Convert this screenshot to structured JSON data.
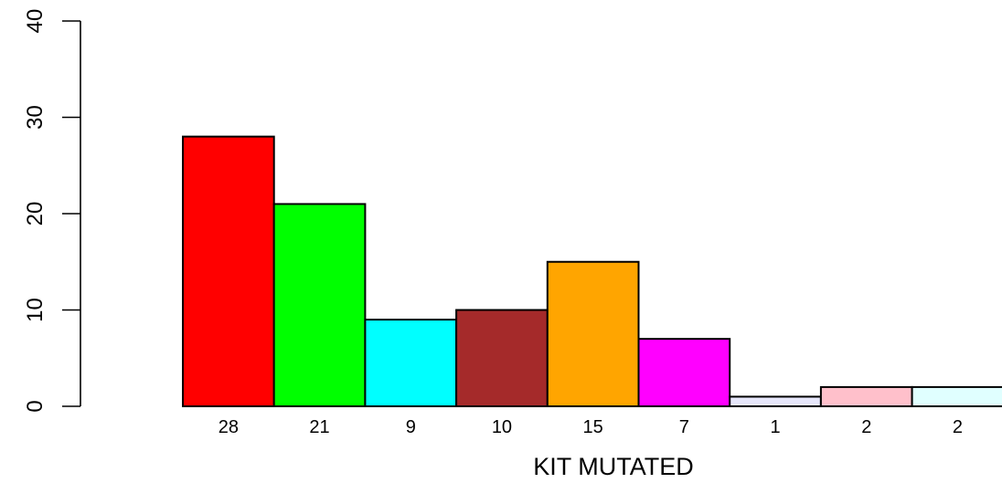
{
  "chart_data": {
    "type": "bar",
    "title": "",
    "xlabel": "KIT MUTATED",
    "ylabel": "",
    "ylim": [
      0,
      40
    ],
    "yticks": [
      0,
      10,
      20,
      30,
      40
    ],
    "grid": false,
    "categories": [
      "28",
      "21",
      "9",
      "10",
      "15",
      "7",
      "1",
      "2",
      "2"
    ],
    "values": [
      28,
      21,
      9,
      10,
      15,
      7,
      1,
      2,
      2
    ],
    "colors": [
      "#ff0000",
      "#00ff00",
      "#00ffff",
      "#a52a2a",
      "#ffa500",
      "#ff00ff",
      "#e6e6fa",
      "#ffc0cb",
      "#e0ffff"
    ]
  }
}
